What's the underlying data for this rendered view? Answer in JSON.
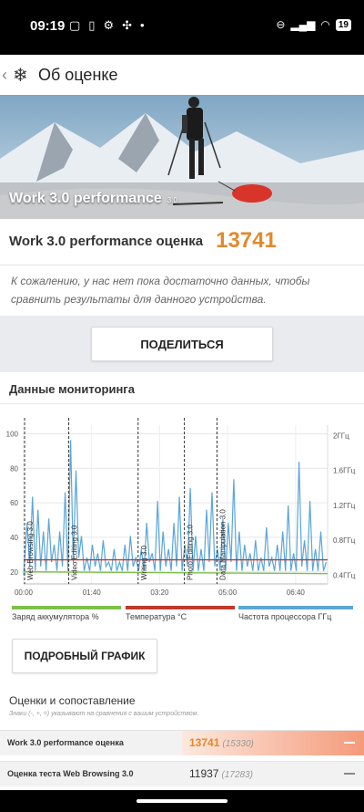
{
  "status_bar": {
    "time": "09:19",
    "left_icons": [
      "gallery-icon",
      "battery-saver-icon",
      "gear-icon",
      "fan-icon",
      "dot-icon"
    ],
    "battery": "19"
  },
  "app_bar": {
    "back_glyph": "‹",
    "logo_glyph": "❄",
    "title": "Об оценке"
  },
  "hero": {
    "label": "Work 3.0 performance",
    "version": "3.0"
  },
  "score": {
    "name": "Work 3.0 performance оценка",
    "value": "13741",
    "accent_color": "#e3892b",
    "note": "К сожалению, у нас нет пока достаточно данных, чтобы сравнить результаты для данного устройства."
  },
  "share_button": "ПОДЕЛИТЬСЯ",
  "monitoring": {
    "title": "Данные мониторинга",
    "detail_button": "ПОДРОБНЫЙ ГРАФИК",
    "legend": [
      {
        "label": "Заряд аккумулятора %",
        "color": "#7cc04b"
      },
      {
        "label": "Температура °C",
        "color": "#c0392b"
      },
      {
        "label": "Частота процессора ГГц",
        "color": "#5aa6d8"
      }
    ]
  },
  "chart_data": {
    "type": "line",
    "title": "",
    "x_tick_labels": [
      "00:00",
      "01:40",
      "03:20",
      "05:00",
      "06:40"
    ],
    "x_tick_minutes": [
      0,
      100,
      200,
      300,
      400
    ],
    "xlim": [
      0,
      447
    ],
    "y_left_ticks": [
      20,
      40,
      60,
      80,
      100
    ],
    "ylim_left": [
      13,
      105
    ],
    "y_right_tick_labels": [
      "0.4ГГц",
      "0.8ГГц",
      "1.2ГГц",
      "1.6ГГц",
      "2ГГц"
    ],
    "y_right_ticks": [
      0.4,
      0.8,
      1.2,
      1.6,
      2.0
    ],
    "ylim_right": [
      0.3,
      2.12
    ],
    "markers": [
      {
        "label": "Web Browsing 3.0",
        "x": 0
      },
      {
        "label": "Video Editing 3.0",
        "x": 65
      },
      {
        "label": "Writing 3.0",
        "x": 167
      },
      {
        "label": "Photo Editing 3.0",
        "x": 235
      },
      {
        "label": "Data Manipulation 3.0",
        "x": 283
      }
    ],
    "series": [
      {
        "name": "Заряд аккумулятора %",
        "color": "#7cc04b",
        "x": [
          0,
          447
        ],
        "y": [
          20,
          19
        ]
      },
      {
        "name": "Температура °C",
        "color": "#c0392b",
        "x": [
          0,
          447
        ],
        "y": [
          27,
          27
        ]
      },
      {
        "name": "Частота процессора ГГц",
        "color": "#5aa6d8",
        "x": [
          0,
          5,
          9,
          13,
          17,
          21,
          25,
          29,
          33,
          37,
          41,
          45,
          49,
          53,
          57,
          61,
          65,
          69,
          73,
          77,
          81,
          85,
          89,
          93,
          97,
          101,
          105,
          109,
          113,
          117,
          121,
          125,
          129,
          133,
          137,
          141,
          145,
          149,
          153,
          157,
          161,
          165,
          169,
          173,
          177,
          181,
          185,
          189,
          193,
          197,
          201,
          205,
          209,
          213,
          217,
          221,
          225,
          229,
          233,
          237,
          241,
          245,
          249,
          253,
          257,
          261,
          265,
          269,
          273,
          277,
          281,
          285,
          289,
          293,
          297,
          301,
          305,
          309,
          313,
          317,
          321,
          325,
          329,
          333,
          337,
          341,
          345,
          349,
          353,
          357,
          361,
          365,
          369,
          373,
          377,
          381,
          385,
          389,
          393,
          397,
          401,
          405,
          409,
          413,
          417,
          421,
          425,
          429,
          433,
          437,
          441,
          445
        ],
        "y": [
          0.4,
          1.0,
          0.5,
          1.3,
          0.45,
          1.15,
          0.5,
          0.9,
          0.45,
          1.05,
          0.55,
          0.75,
          0.45,
          0.9,
          0.5,
          1.35,
          0.45,
          1.95,
          0.55,
          1.6,
          0.6,
          0.85,
          0.45,
          0.6,
          0.45,
          0.75,
          0.5,
          0.65,
          0.45,
          0.8,
          0.5,
          0.55,
          0.45,
          0.7,
          0.45,
          0.55,
          0.45,
          0.75,
          0.45,
          0.85,
          0.5,
          0.6,
          0.45,
          0.7,
          0.45,
          1.0,
          0.55,
          0.65,
          0.45,
          1.25,
          0.45,
          0.9,
          0.5,
          0.7,
          0.45,
          1.0,
          0.5,
          1.3,
          0.45,
          0.75,
          0.5,
          1.4,
          0.45,
          0.85,
          0.45,
          0.7,
          0.45,
          1.15,
          0.55,
          1.35,
          0.5,
          0.7,
          0.45,
          1.05,
          0.45,
          1.0,
          0.55,
          1.5,
          0.45,
          0.9,
          0.45,
          0.75,
          0.5,
          0.65,
          0.45,
          0.8,
          0.45,
          0.6,
          0.45,
          0.95,
          0.5,
          0.6,
          0.45,
          0.75,
          0.45,
          0.9,
          0.45,
          1.2,
          0.45,
          0.65,
          0.45,
          1.7,
          0.5,
          0.8,
          0.45,
          1.25,
          0.45,
          0.7,
          0.45,
          0.9,
          0.45,
          0.55
        ]
      }
    ]
  },
  "ratings": {
    "title": "Оценки и сопоставление",
    "subtitle": "Знаки (-, +, =) указывают на сравнения с вашим устройством.",
    "rows": [
      {
        "name": "Work 3.0 performance оценка",
        "value": "13741",
        "compare": "(15330)",
        "highlight": true
      },
      {
        "name": "Оценка теста Web Browsing 3.0",
        "value": "11937",
        "compare": "(17283)",
        "highlight": false
      }
    ]
  }
}
